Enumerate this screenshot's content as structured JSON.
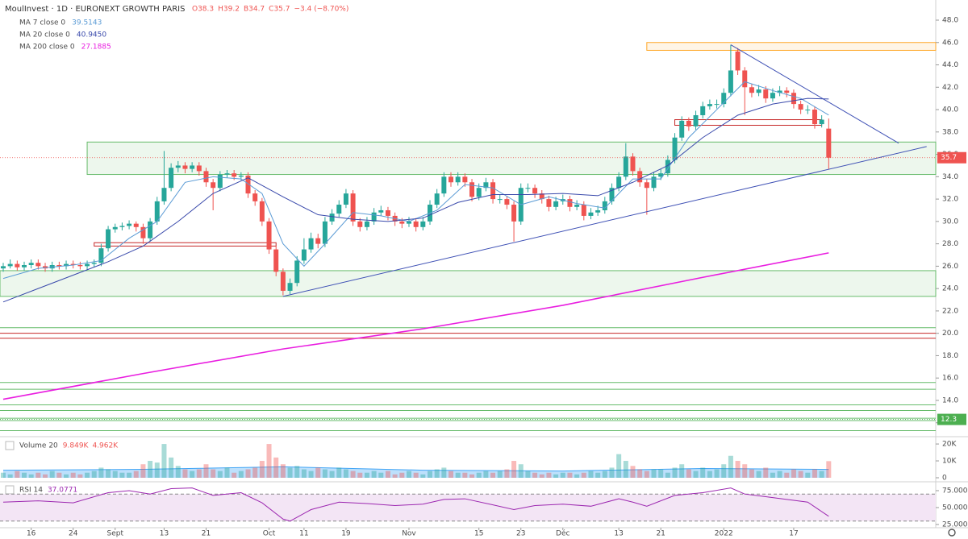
{
  "chart_data": {
    "type": "candlestick",
    "symbol": "MoulInvest · 1D · EURONEXT GROWTH PARIS",
    "ohlc": [
      "O38.3",
      "H39.2",
      "B34.7",
      "C35.7",
      "−3.4 (−8.70%)"
    ],
    "colors": {
      "up": "#26a69a",
      "down": "#ef5350"
    },
    "xlim": [
      -0.46,
      133.3
    ],
    "xticks": [
      {
        "value": 4,
        "label": "16"
      },
      {
        "value": 10,
        "label": "24"
      },
      {
        "value": 16,
        "label": "Sept"
      },
      {
        "value": 23,
        "label": "13"
      },
      {
        "value": 29,
        "label": "21"
      },
      {
        "value": 38,
        "label": "Oct"
      },
      {
        "value": 43,
        "label": "11"
      },
      {
        "value": 49,
        "label": "19"
      },
      {
        "value": 58,
        "label": "Nov"
      },
      {
        "value": 68,
        "label": "15"
      },
      {
        "value": 74,
        "label": "23"
      },
      {
        "value": 80,
        "label": "Déc"
      },
      {
        "value": 88,
        "label": "13"
      },
      {
        "value": 94,
        "label": "21"
      },
      {
        "value": 103,
        "label": "2022"
      },
      {
        "value": 113,
        "label": "17"
      }
    ],
    "ylim": [
      10.9,
      49.8
    ],
    "yticks": [
      {
        "value": 12,
        "label": "12.0"
      },
      {
        "value": 14,
        "label": "14.0"
      },
      {
        "value": 16,
        "label": "16.0"
      },
      {
        "value": 18,
        "label": "18.0"
      },
      {
        "value": 20,
        "label": "20.0"
      },
      {
        "value": 22,
        "label": "22.0"
      },
      {
        "value": 24,
        "label": "24.0"
      },
      {
        "value": 26,
        "label": "26.0"
      },
      {
        "value": 28,
        "label": "28.0"
      },
      {
        "value": 30,
        "label": "30.0"
      },
      {
        "value": 32,
        "label": "32.0"
      },
      {
        "value": 34,
        "label": "34.0"
      },
      {
        "value": 36,
        "label": "36.0"
      },
      {
        "value": 38,
        "label": "38.0"
      },
      {
        "value": 40,
        "label": "40.0"
      },
      {
        "value": 42,
        "label": "42.0"
      },
      {
        "value": 44,
        "label": "44.0"
      },
      {
        "value": 46,
        "label": "46.0"
      },
      {
        "value": 48,
        "label": "48.0"
      }
    ],
    "candles": [
      [
        25.8,
        26.3,
        25.5,
        26.0
      ],
      [
        26.0,
        26.6,
        25.8,
        26.2
      ],
      [
        26.2,
        26.5,
        25.6,
        25.9
      ],
      [
        25.9,
        26.4,
        25.6,
        26.1
      ],
      [
        26.1,
        26.6,
        25.8,
        26.3
      ],
      [
        26.3,
        26.6,
        25.7,
        26.0
      ],
      [
        26.0,
        26.3,
        25.5,
        25.8
      ],
      [
        25.8,
        26.4,
        25.5,
        26.1
      ],
      [
        26.1,
        26.4,
        25.7,
        26.0
      ],
      [
        26.0,
        26.5,
        25.7,
        26.2
      ],
      [
        26.2,
        26.5,
        25.8,
        26.1
      ],
      [
        26.1,
        26.4,
        25.7,
        26.0
      ],
      [
        26.0,
        26.5,
        25.7,
        26.2
      ],
      [
        26.2,
        26.6,
        25.9,
        26.3
      ],
      [
        26.3,
        28.0,
        26.0,
        27.6
      ],
      [
        27.6,
        29.6,
        27.3,
        29.3
      ],
      [
        29.3,
        29.8,
        29.0,
        29.5
      ],
      [
        29.5,
        29.9,
        29.2,
        29.6
      ],
      [
        29.6,
        30.1,
        29.3,
        29.8
      ],
      [
        29.8,
        30.0,
        29.1,
        29.5
      ],
      [
        29.5,
        29.8,
        28.0,
        28.5
      ],
      [
        28.5,
        30.3,
        28.2,
        30.0
      ],
      [
        30.0,
        32.2,
        29.7,
        31.8
      ],
      [
        31.8,
        36.3,
        31.5,
        33.0
      ],
      [
        33.0,
        35.2,
        32.7,
        34.8
      ],
      [
        34.8,
        35.4,
        34.4,
        35.0
      ],
      [
        35.0,
        35.3,
        34.3,
        34.7
      ],
      [
        34.7,
        35.3,
        34.4,
        35.0
      ],
      [
        35.0,
        35.3,
        34.1,
        34.5
      ],
      [
        34.5,
        34.8,
        33.1,
        33.5
      ],
      [
        33.5,
        33.8,
        31.0,
        33.0
      ],
      [
        33.0,
        34.5,
        32.7,
        34.2
      ],
      [
        34.2,
        34.6,
        33.9,
        34.3
      ],
      [
        34.3,
        34.6,
        33.7,
        34.0
      ],
      [
        34.0,
        34.4,
        33.7,
        34.1
      ],
      [
        34.1,
        34.4,
        32.1,
        32.5
      ],
      [
        32.5,
        32.8,
        31.4,
        31.8
      ],
      [
        31.8,
        32.1,
        29.6,
        30.0
      ],
      [
        30.0,
        30.3,
        27.1,
        27.5
      ],
      [
        27.5,
        27.8,
        25.1,
        25.5
      ],
      [
        25.5,
        25.8,
        23.4,
        23.8
      ],
      [
        23.8,
        24.9,
        23.5,
        24.5
      ],
      [
        24.5,
        26.9,
        24.2,
        26.5
      ],
      [
        26.5,
        28.5,
        26.2,
        27.5
      ],
      [
        27.5,
        29.0,
        27.2,
        28.5
      ],
      [
        28.5,
        28.9,
        27.6,
        28.0
      ],
      [
        28.0,
        30.4,
        27.7,
        30.0
      ],
      [
        30.0,
        31.1,
        29.7,
        30.7
      ],
      [
        30.7,
        31.9,
        30.4,
        31.5
      ],
      [
        31.5,
        32.9,
        31.2,
        32.5
      ],
      [
        32.5,
        32.8,
        29.6,
        30.0
      ],
      [
        30.0,
        30.3,
        29.1,
        29.5
      ],
      [
        29.5,
        30.4,
        29.2,
        30.0
      ],
      [
        30.0,
        31.2,
        29.7,
        30.8
      ],
      [
        30.8,
        31.4,
        30.5,
        31.0
      ],
      [
        31.0,
        31.3,
        30.1,
        30.5
      ],
      [
        30.5,
        30.8,
        29.6,
        30.0
      ],
      [
        30.0,
        30.3,
        29.4,
        29.8
      ],
      [
        29.8,
        30.4,
        29.5,
        30.0
      ],
      [
        30.0,
        30.3,
        29.1,
        29.5
      ],
      [
        29.5,
        30.4,
        29.2,
        30.0
      ],
      [
        30.0,
        31.9,
        29.7,
        31.5
      ],
      [
        31.5,
        32.9,
        31.2,
        32.5
      ],
      [
        32.5,
        34.4,
        32.2,
        34.0
      ],
      [
        34.0,
        34.4,
        33.1,
        33.5
      ],
      [
        33.5,
        34.4,
        33.2,
        34.0
      ],
      [
        34.0,
        34.3,
        33.1,
        33.5
      ],
      [
        33.5,
        33.8,
        31.8,
        32.2
      ],
      [
        32.2,
        33.4,
        31.9,
        33.0
      ],
      [
        33.0,
        33.9,
        32.7,
        33.5
      ],
      [
        33.5,
        33.8,
        31.6,
        32.0
      ],
      [
        32.0,
        32.4,
        31.6,
        32.0
      ],
      [
        32.0,
        32.3,
        31.1,
        31.5
      ],
      [
        31.5,
        31.8,
        28.2,
        30.0
      ],
      [
        30.0,
        33.4,
        29.7,
        33.0
      ],
      [
        33.0,
        33.4,
        32.6,
        33.0
      ],
      [
        33.0,
        33.3,
        32.1,
        32.5
      ],
      [
        32.5,
        32.8,
        31.6,
        32.0
      ],
      [
        32.0,
        32.3,
        30.9,
        31.3
      ],
      [
        31.3,
        32.2,
        31.0,
        31.8
      ],
      [
        31.8,
        32.4,
        31.5,
        32.0
      ],
      [
        32.0,
        32.3,
        30.9,
        31.3
      ],
      [
        31.3,
        31.9,
        31.0,
        31.5
      ],
      [
        31.5,
        31.8,
        30.1,
        30.5
      ],
      [
        30.5,
        31.2,
        30.2,
        30.8
      ],
      [
        30.8,
        31.4,
        30.5,
        31.0
      ],
      [
        31.0,
        32.2,
        30.7,
        31.8
      ],
      [
        31.8,
        33.4,
        31.5,
        33.0
      ],
      [
        33.0,
        34.4,
        32.7,
        34.0
      ],
      [
        34.0,
        37.0,
        33.7,
        35.8
      ],
      [
        35.8,
        36.1,
        34.1,
        34.5
      ],
      [
        34.5,
        34.8,
        33.1,
        33.5
      ],
      [
        33.5,
        33.8,
        30.6,
        33.0
      ],
      [
        33.0,
        34.4,
        32.7,
        34.0
      ],
      [
        34.0,
        34.7,
        33.7,
        34.3
      ],
      [
        34.3,
        35.9,
        34.0,
        35.5
      ],
      [
        35.5,
        37.9,
        35.2,
        37.5
      ],
      [
        37.5,
        39.4,
        37.2,
        39.0
      ],
      [
        39.0,
        39.3,
        38.1,
        38.5
      ],
      [
        38.5,
        39.9,
        38.2,
        39.5
      ],
      [
        39.5,
        40.7,
        39.2,
        40.3
      ],
      [
        40.3,
        40.9,
        40.0,
        40.5
      ],
      [
        40.5,
        40.9,
        40.1,
        40.5
      ],
      [
        40.5,
        41.9,
        40.2,
        41.5
      ],
      [
        41.5,
        45.8,
        41.2,
        43.5
      ],
      [
        45.2,
        45.5,
        43.1,
        43.5
      ],
      [
        43.5,
        43.8,
        39.5,
        42.0
      ],
      [
        42.0,
        42.3,
        41.1,
        41.5
      ],
      [
        41.5,
        42.2,
        41.2,
        41.8
      ],
      [
        41.8,
        42.1,
        40.6,
        41.0
      ],
      [
        41.0,
        41.9,
        40.7,
        41.5
      ],
      [
        41.5,
        42.1,
        41.2,
        41.7
      ],
      [
        41.7,
        42.0,
        41.1,
        41.5
      ],
      [
        41.5,
        41.8,
        40.1,
        40.5
      ],
      [
        40.5,
        40.8,
        39.6,
        40.0
      ],
      [
        40.0,
        40.4,
        39.6,
        40.0
      ],
      [
        40.0,
        40.3,
        38.3,
        38.7
      ],
      [
        38.7,
        39.5,
        38.4,
        39.1
      ],
      [
        38.3,
        39.2,
        34.7,
        35.7
      ]
    ],
    "series": [
      {
        "name": "MA 7 close 0",
        "value_label": "39.5143",
        "color": "#5b9bd5",
        "x": [
          0,
          5,
          10,
          14,
          18,
          22,
          26,
          30,
          34,
          37,
          40,
          43,
          46,
          50,
          54,
          58,
          62,
          66,
          70,
          74,
          78,
          82,
          86,
          90,
          94,
          98,
          102,
          106,
          110,
          114,
          118
        ],
        "values": [
          24.9,
          25.8,
          26.1,
          26.5,
          28.5,
          30.0,
          33.5,
          34.0,
          33.8,
          32.5,
          28.0,
          26.0,
          28.0,
          30.8,
          30.5,
          30.0,
          31.0,
          33.3,
          33.0,
          31.5,
          32.2,
          31.6,
          31.2,
          33.8,
          33.8,
          37.5,
          40.0,
          42.5,
          41.7,
          41.0,
          39.5143
        ]
      },
      {
        "name": "MA 20 close 0",
        "value_label": "40.9450",
        "color": "#3949ab",
        "x": [
          0,
          5,
          10,
          15,
          20,
          25,
          30,
          35,
          40,
          45,
          50,
          55,
          60,
          65,
          70,
          75,
          80,
          85,
          90,
          95,
          100,
          105,
          110,
          115,
          118
        ],
        "values": [
          22.8,
          24.0,
          25.2,
          26.4,
          27.8,
          30.0,
          32.5,
          33.9,
          32.2,
          30.6,
          30.2,
          30.0,
          30.3,
          31.7,
          32.4,
          32.4,
          32.5,
          32.3,
          33.5,
          35.0,
          37.5,
          39.5,
          40.5,
          41.0,
          40.945
        ]
      },
      {
        "name": "MA 200 close 0",
        "value_label": "27.1885",
        "color": "#e91ee0",
        "x": [
          0,
          20,
          40,
          60,
          80,
          100,
          118
        ],
        "values": [
          14.1,
          16.4,
          18.6,
          20.4,
          22.5,
          25.0,
          27.1885
        ]
      }
    ],
    "price_labels": [
      {
        "value": 35.7,
        "color": "#ef5350"
      },
      {
        "value": 12.3,
        "color": "#4caf50"
      }
    ],
    "zones": [
      {
        "y": [
          34.2,
          37.1
        ],
        "x": [
          12,
          133.3
        ],
        "fill": "#e8f5e9",
        "stroke": "#66bb6a"
      },
      {
        "y": [
          23.3,
          25.6
        ],
        "x": [
          -0.46,
          133.3
        ],
        "fill": "#e8f5e9",
        "stroke": "#66bb6a"
      },
      {
        "y": [
          45.3,
          46.0
        ],
        "x": [
          92,
          133.3
        ],
        "fill": "#fff3e0",
        "stroke": "#ffa726"
      },
      {
        "y": [
          27.8,
          28.1
        ],
        "x": [
          13,
          39
        ],
        "fill": "none",
        "stroke": "#c62828"
      },
      {
        "y": [
          38.6,
          39.1
        ],
        "x": [
          96,
          117
        ],
        "fill": "none",
        "stroke": "#c62828"
      }
    ],
    "levels": [
      {
        "value": 20.5,
        "color": "#66bb6a"
      },
      {
        "value": 20.0,
        "color": "#c62828"
      },
      {
        "value": 19.55,
        "color": "#c62828"
      },
      {
        "value": 15.6,
        "color": "#66bb6a"
      },
      {
        "value": 15.0,
        "color": "#66bb6a"
      },
      {
        "value": 13.6,
        "color": "#66bb6a"
      },
      {
        "value": 13.1,
        "color": "#66bb6a"
      },
      {
        "value": 12.4,
        "color": "#66bb6a"
      },
      {
        "value": 12.2,
        "color": "#66bb6a"
      },
      {
        "value": 11.3,
        "color": "#66bb6a"
      }
    ],
    "trendlines": [
      {
        "x": [
          40,
          132
        ],
        "y": [
          23.3,
          36.7
        ],
        "color": "#3f51b5"
      },
      {
        "x": [
          104,
          128
        ],
        "y": [
          45.8,
          37.0
        ],
        "color": "#3f51b5"
      }
    ],
    "volume": {
      "title": "Volume 20",
      "legend_values": [
        "9.849K",
        "4.962K"
      ],
      "ylim": [
        0,
        22.9
      ],
      "yticks": [
        {
          "value": 0,
          "label": "0"
        },
        {
          "value": 10,
          "label": "10K"
        },
        {
          "value": 20,
          "label": "20K"
        }
      ],
      "values": [
        3,
        2,
        4,
        3,
        2,
        3,
        2,
        4,
        3,
        2,
        3,
        2,
        3,
        4,
        6,
        5,
        4,
        3,
        3,
        4,
        8,
        10,
        9,
        20,
        12,
        7,
        5,
        4,
        5,
        8,
        5,
        4,
        6,
        3,
        4,
        5,
        6,
        10,
        20,
        12,
        8,
        6,
        7,
        5,
        4,
        6,
        5,
        4,
        6,
        5,
        4,
        3,
        3,
        4,
        3,
        4,
        2,
        3,
        4,
        3,
        2,
        4,
        5,
        6,
        4,
        3,
        3,
        2,
        3,
        4,
        3,
        4,
        5,
        10,
        8,
        4,
        3,
        2,
        3,
        2,
        3,
        3,
        2,
        3,
        4,
        3,
        4,
        6,
        14,
        10,
        7,
        5,
        4,
        5,
        5,
        3,
        6,
        8,
        5,
        4,
        6,
        4,
        5,
        8,
        13,
        10,
        8,
        5,
        4,
        6,
        3,
        4,
        3,
        5,
        4,
        3,
        5,
        4,
        9.849
      ],
      "ma": {
        "color": "#42a5f5",
        "x": [
          0,
          20,
          40,
          60,
          80,
          100,
          118
        ],
        "values": [
          4.5,
          5,
          6.5,
          4.5,
          4,
          5.5,
          4.962
        ]
      }
    },
    "rsi": {
      "title": "RSI 14",
      "legend_value": "37.0771",
      "color": "#9c27b0",
      "ylim": [
        23.8,
        85.7
      ],
      "yticks": [
        {
          "value": 25,
          "label": "25.0000"
        },
        {
          "value": 50,
          "label": "50.0000"
        },
        {
          "value": 75,
          "label": "75.0000"
        }
      ],
      "bands": [
        30,
        70
      ],
      "x": [
        0,
        5,
        10,
        15,
        18,
        21,
        24,
        27,
        30,
        34,
        37,
        40,
        41,
        44,
        48,
        52,
        56,
        60,
        63,
        66,
        70,
        73,
        76,
        80,
        84,
        88,
        90,
        92,
        96,
        100,
        104,
        106,
        109,
        112,
        115,
        118
      ],
      "values": [
        58,
        60,
        57,
        72,
        75,
        70,
        78,
        79,
        68,
        72,
        57,
        33,
        30,
        47,
        58,
        56,
        53,
        55,
        62,
        63,
        54,
        47,
        53,
        55,
        52,
        63,
        58,
        52,
        68,
        72,
        79,
        70,
        66,
        62,
        58,
        37.0771
      ]
    }
  }
}
